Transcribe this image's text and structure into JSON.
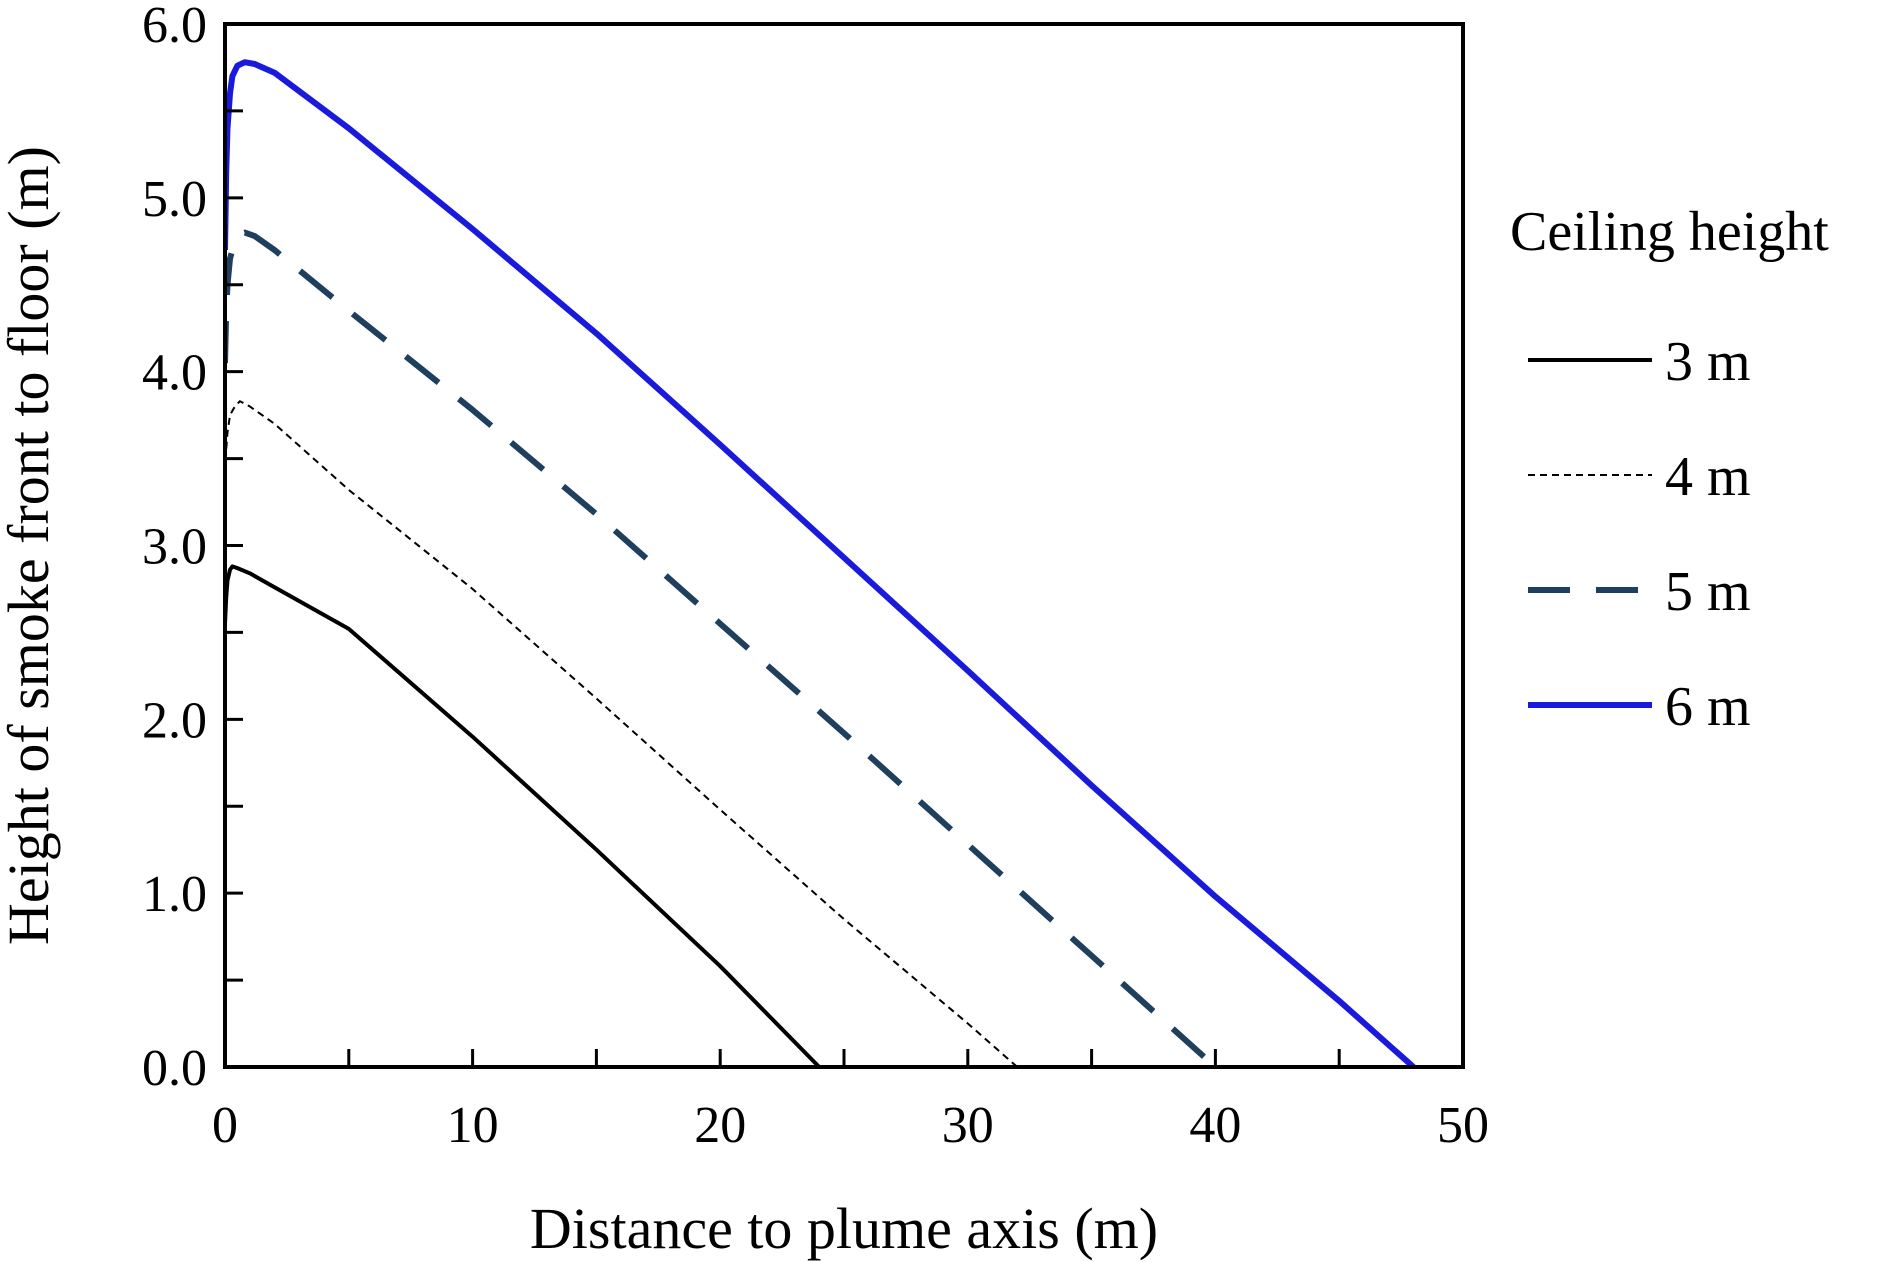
{
  "chart_data": {
    "type": "line",
    "title": "",
    "xlabel": "Distance to plume axis (m)",
    "ylabel": "Height of smoke front to floor (m)",
    "xlim": [
      0,
      50
    ],
    "ylim": [
      0,
      6
    ],
    "x_ticks": [
      0,
      10,
      20,
      30,
      40,
      50
    ],
    "x_tick_labels": [
      "0",
      "10",
      "20",
      "30",
      "40",
      "50"
    ],
    "y_ticks": [
      0,
      1,
      2,
      3,
      4,
      5,
      6
    ],
    "y_tick_labels": [
      "0.0",
      "1.0",
      "2.0",
      "3.0",
      "4.0",
      "5.0",
      "6.0"
    ],
    "grid": false,
    "legend": {
      "title": "Ceiling height",
      "position": "right"
    },
    "series": [
      {
        "name": "3 m",
        "color": "#000000",
        "style": "solid",
        "x": [
          0,
          0.05,
          0.1,
          0.2,
          0.3,
          0.5,
          1,
          2,
          5,
          10,
          15,
          20,
          24
        ],
        "y": [
          2.55,
          2.7,
          2.8,
          2.86,
          2.88,
          2.87,
          2.84,
          2.76,
          2.52,
          1.9,
          1.25,
          0.58,
          0.0
        ]
      },
      {
        "name": "4 m",
        "color": "#000000",
        "style": "dotted",
        "x": [
          0,
          0.05,
          0.1,
          0.2,
          0.4,
          0.6,
          1,
          2,
          5,
          10,
          15,
          20,
          25,
          30,
          32
        ],
        "y": [
          3.35,
          3.55,
          3.65,
          3.75,
          3.8,
          3.83,
          3.8,
          3.7,
          3.32,
          2.75,
          2.12,
          1.48,
          0.85,
          0.25,
          0.0
        ]
      },
      {
        "name": "5 m",
        "color": "#1f3f5f",
        "style": "dashed",
        "x": [
          0,
          0.05,
          0.1,
          0.2,
          0.4,
          0.6,
          0.8,
          1.2,
          2,
          5,
          10,
          15,
          20,
          25,
          30,
          35,
          40
        ],
        "y": [
          4.05,
          4.35,
          4.5,
          4.65,
          4.75,
          4.79,
          4.8,
          4.78,
          4.7,
          4.35,
          3.78,
          3.18,
          2.55,
          1.92,
          1.28,
          0.64,
          0.0
        ]
      },
      {
        "name": "6 m",
        "color": "#1a1adc",
        "style": "solid",
        "x": [
          0,
          0.05,
          0.1,
          0.2,
          0.3,
          0.5,
          0.8,
          1.2,
          2,
          5,
          10,
          15,
          20,
          25,
          30,
          35,
          40,
          45,
          48
        ],
        "y": [
          4.7,
          5.15,
          5.4,
          5.6,
          5.7,
          5.76,
          5.78,
          5.77,
          5.72,
          5.4,
          4.82,
          4.22,
          3.58,
          2.93,
          2.28,
          1.62,
          0.98,
          0.38,
          0.0
        ]
      }
    ]
  }
}
